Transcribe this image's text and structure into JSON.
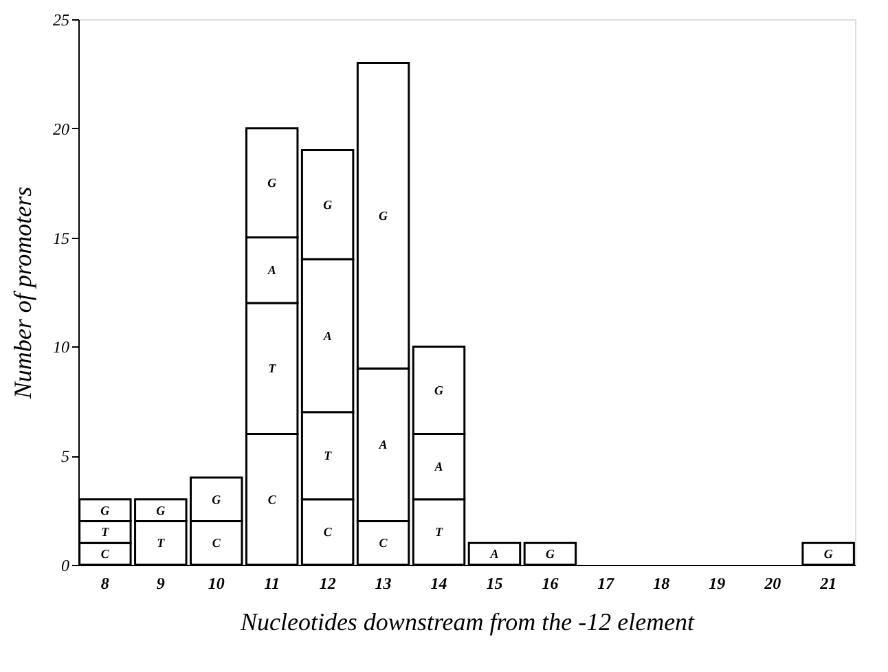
{
  "chart_data": {
    "type": "bar",
    "stacked": true,
    "xlabel": "Nucleotides downstream from the -12 element",
    "ylabel": "Number of promoters",
    "categories": [
      "8",
      "9",
      "10",
      "11",
      "12",
      "13",
      "14",
      "15",
      "16",
      "17",
      "18",
      "19",
      "20",
      "21"
    ],
    "series": [
      {
        "name": "C",
        "color": "#ffffff",
        "values": [
          1,
          null,
          2,
          6,
          3,
          2,
          null,
          null,
          null,
          null,
          null,
          null,
          null,
          null
        ]
      },
      {
        "name": "T",
        "color": "#ffffff",
        "values": [
          1,
          2,
          null,
          6,
          4,
          null,
          3,
          null,
          null,
          null,
          null,
          null,
          null,
          null
        ]
      },
      {
        "name": "A",
        "color": "#ffffff",
        "values": [
          null,
          null,
          null,
          3,
          7,
          7,
          3,
          1,
          null,
          null,
          null,
          null,
          null,
          null
        ]
      },
      {
        "name": "G",
        "color": "#ffffff",
        "values": [
          1,
          1,
          2,
          5,
          5,
          14,
          4,
          null,
          1,
          null,
          null,
          null,
          null,
          1
        ]
      }
    ],
    "ylim": [
      0,
      25
    ],
    "yticks": [
      0,
      5,
      10,
      15,
      20,
      25
    ],
    "grid": false
  }
}
